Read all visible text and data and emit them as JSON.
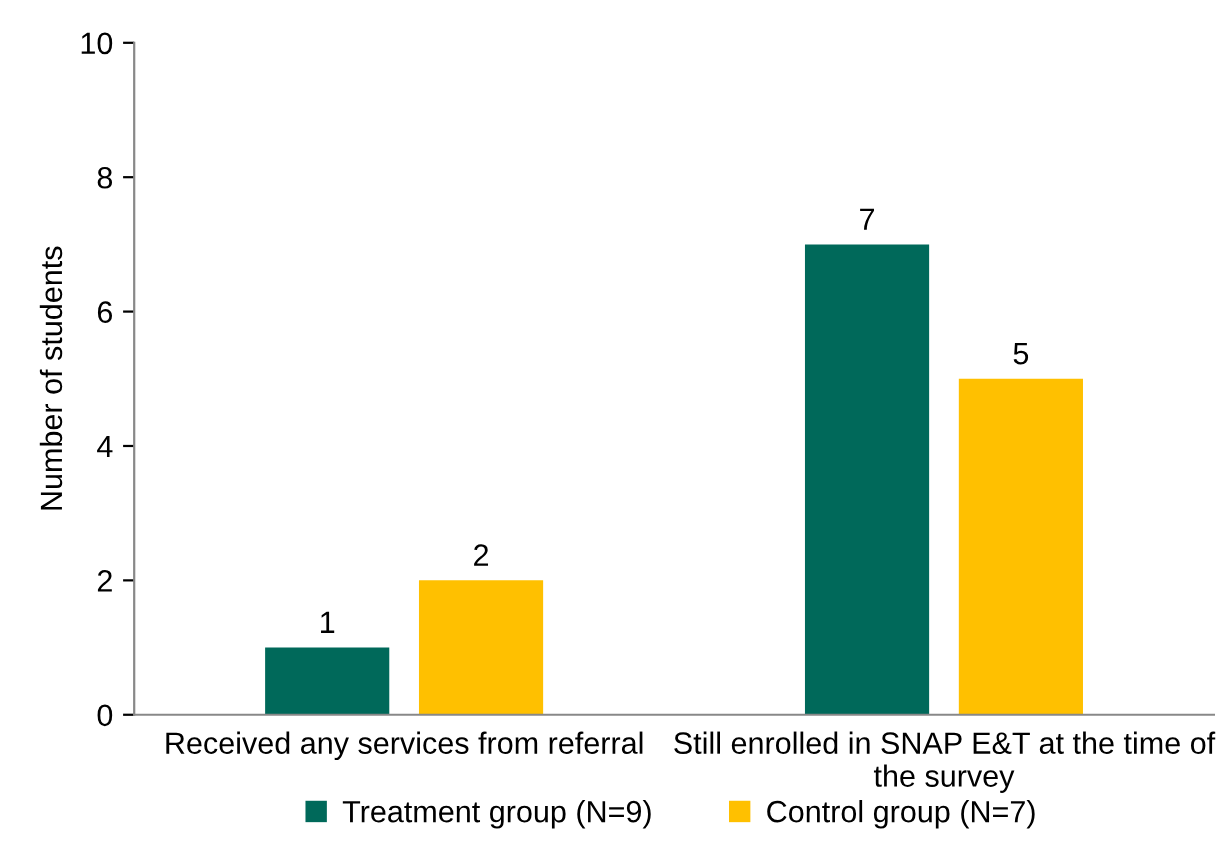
{
  "chart_data": {
    "type": "bar",
    "categories": [
      "Received any services from referral",
      "Still enrolled in SNAP E&T at the time of the survey"
    ],
    "series": [
      {
        "name": "Treatment group (N=9)",
        "color": "#00695a",
        "values": [
          1,
          7
        ]
      },
      {
        "name": "Control group (N=7)",
        "color": "#ffc000",
        "values": [
          2,
          5
        ]
      }
    ],
    "ylabel": "Number of students",
    "ylim": [
      0,
      10
    ],
    "yticks": [
      0,
      2,
      4,
      6,
      8,
      10
    ],
    "data_labels": true,
    "grid": false,
    "legend": "bottom"
  }
}
